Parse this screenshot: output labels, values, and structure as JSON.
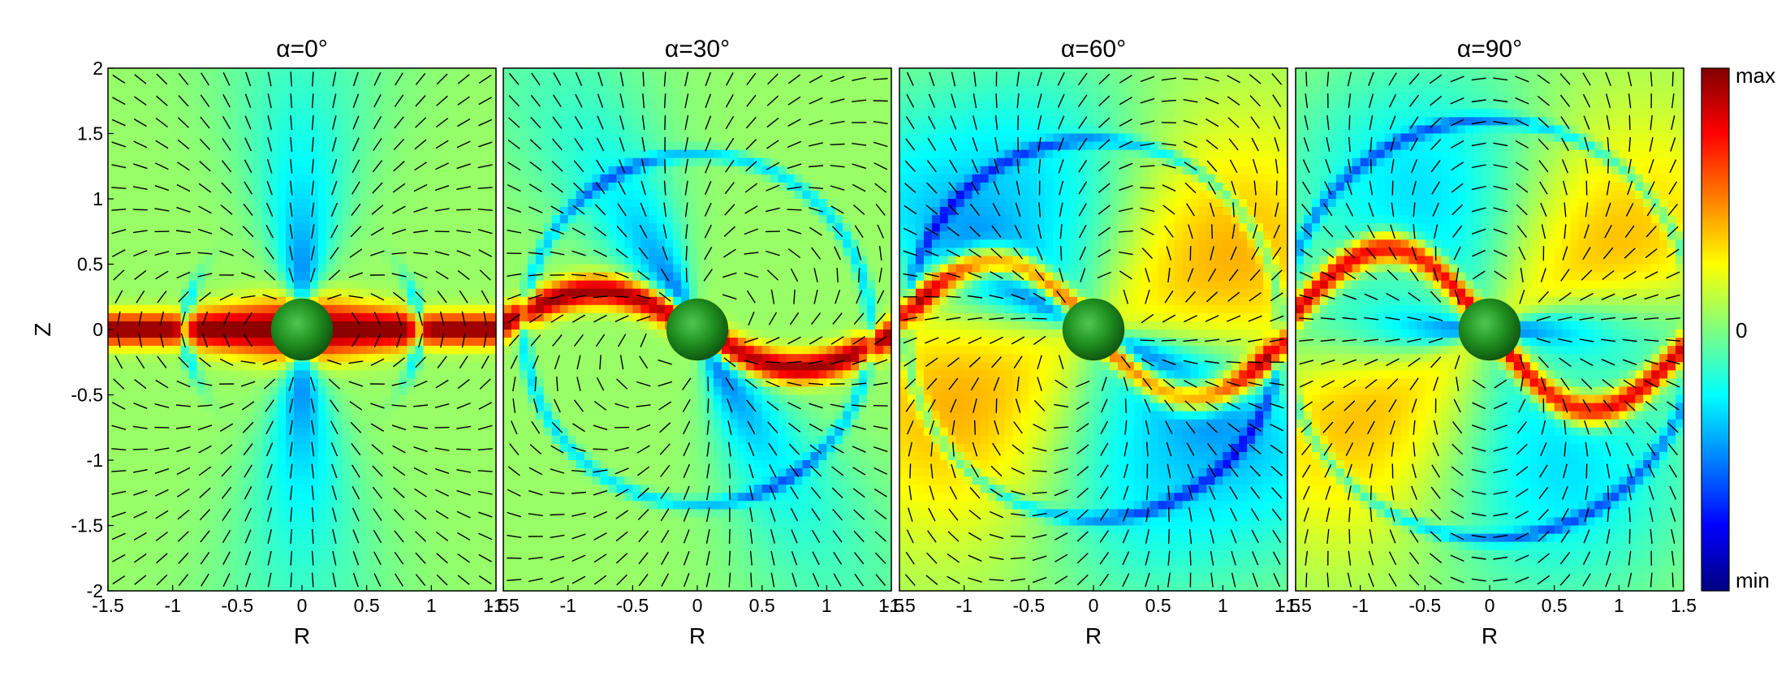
{
  "chart_data": {
    "type": "heatmap",
    "colormap": "jet",
    "panels": [
      {
        "title": "α=0°",
        "alpha_deg": 0
      },
      {
        "title": "α=30°",
        "alpha_deg": 30
      },
      {
        "title": "α=60°",
        "alpha_deg": 60
      },
      {
        "title": "α=90°",
        "alpha_deg": 90
      }
    ],
    "xlabel": "R",
    "ylabel": "Z",
    "xlim": [
      -1.5,
      1.5
    ],
    "ylim": [
      -2,
      2
    ],
    "xticks": [
      "-1.5",
      "-1",
      "-0.5",
      "0",
      "0.5",
      "1",
      "1.5"
    ],
    "yticks": [
      "2",
      "1.5",
      "1",
      "0.5",
      "0",
      "-0.5",
      "-1",
      "-1.5",
      "-2"
    ],
    "colorbar": {
      "labels": [
        "max",
        "0",
        "min"
      ]
    },
    "overlay": "black arrows showing vector field direction",
    "central_body": {
      "shape": "sphere",
      "color": "#1f8a1f",
      "center": [
        0,
        0
      ],
      "radius": 0.24
    }
  }
}
